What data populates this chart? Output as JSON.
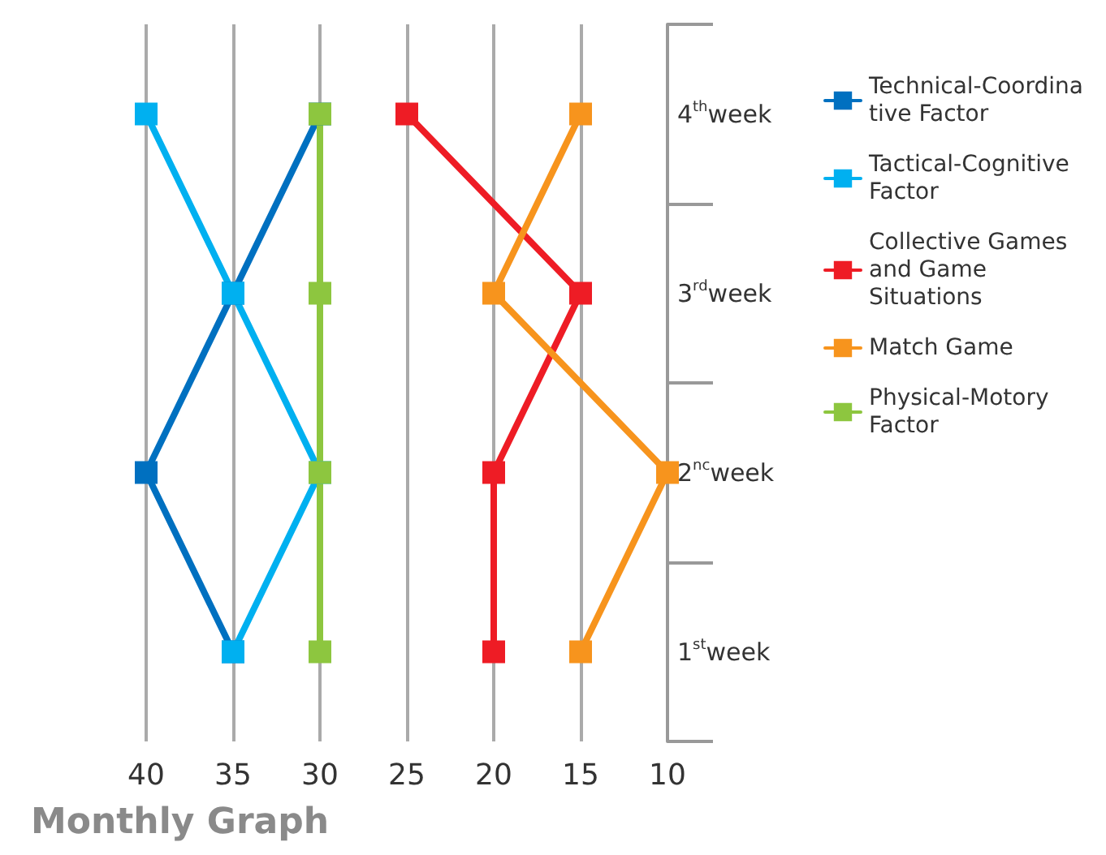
{
  "chart_data": {
    "type": "line",
    "title": "Monthly Graph",
    "orientation": "horizontal",
    "categories": [
      "4$^{th}$week",
      "3$^{rd}$week",
      "2$^{nc}$week",
      "1$^{st}$week"
    ],
    "series": [
      {
        "name": "Technical-Coordinative Factor",
        "color": "#0070c0",
        "values": [
          30,
          35,
          40,
          35
        ]
      },
      {
        "name": "Tactical-Cognitive Factor",
        "color": "#00b0f0",
        "values": [
          40,
          35,
          30,
          35
        ]
      },
      {
        "name": "Collective Games and Game Situations",
        "color": "#ee1c25",
        "values": [
          25,
          15,
          20,
          20
        ]
      },
      {
        "name": "Match Game",
        "color": "#f7941d",
        "values": [
          15,
          20,
          10,
          15
        ]
      },
      {
        "name": "Physical-Motory Factor",
        "color": "#8dc63f",
        "values": [
          30,
          30,
          30,
          30
        ]
      }
    ],
    "xlim": [
      40,
      10
    ],
    "xticks": [
      40,
      35,
      30,
      25,
      20,
      15,
      10
    ],
    "grid": "x",
    "legend": "right",
    "marker": "square",
    "line_style": "solid"
  }
}
